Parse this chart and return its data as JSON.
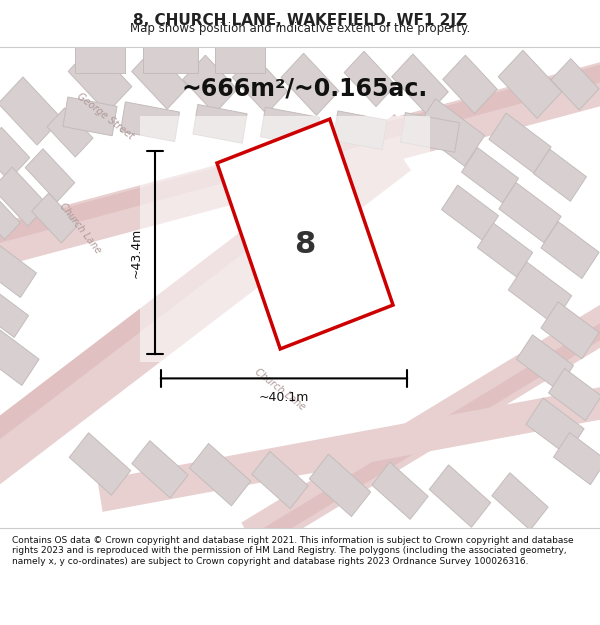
{
  "title": "8, CHURCH LANE, WAKEFIELD, WF1 2JZ",
  "subtitle": "Map shows position and indicative extent of the property.",
  "area_text": "~666m²/~0.165ac.",
  "property_number": "8",
  "dim_width": "~40.1m",
  "dim_height": "~43.4m",
  "footer": "Contains OS data © Crown copyright and database right 2021. This information is subject to Crown copyright and database rights 2023 and is reproduced with the permission of HM Land Registry. The polygons (including the associated geometry, namely x, y co-ordinates) are subject to Crown copyright and database rights 2023 Ordnance Survey 100026316.",
  "bg_color": "#f5f0f0",
  "map_bg": "#f0eded",
  "road_color_light": "#e8c8c8",
  "road_color_medium": "#d4a0a0",
  "building_fill": "#d8d0d0",
  "building_stroke": "#c0b8b8",
  "plot_color": "#cc0000",
  "plot_fill": "white",
  "text_color": "#222222",
  "footer_color": "#111111"
}
